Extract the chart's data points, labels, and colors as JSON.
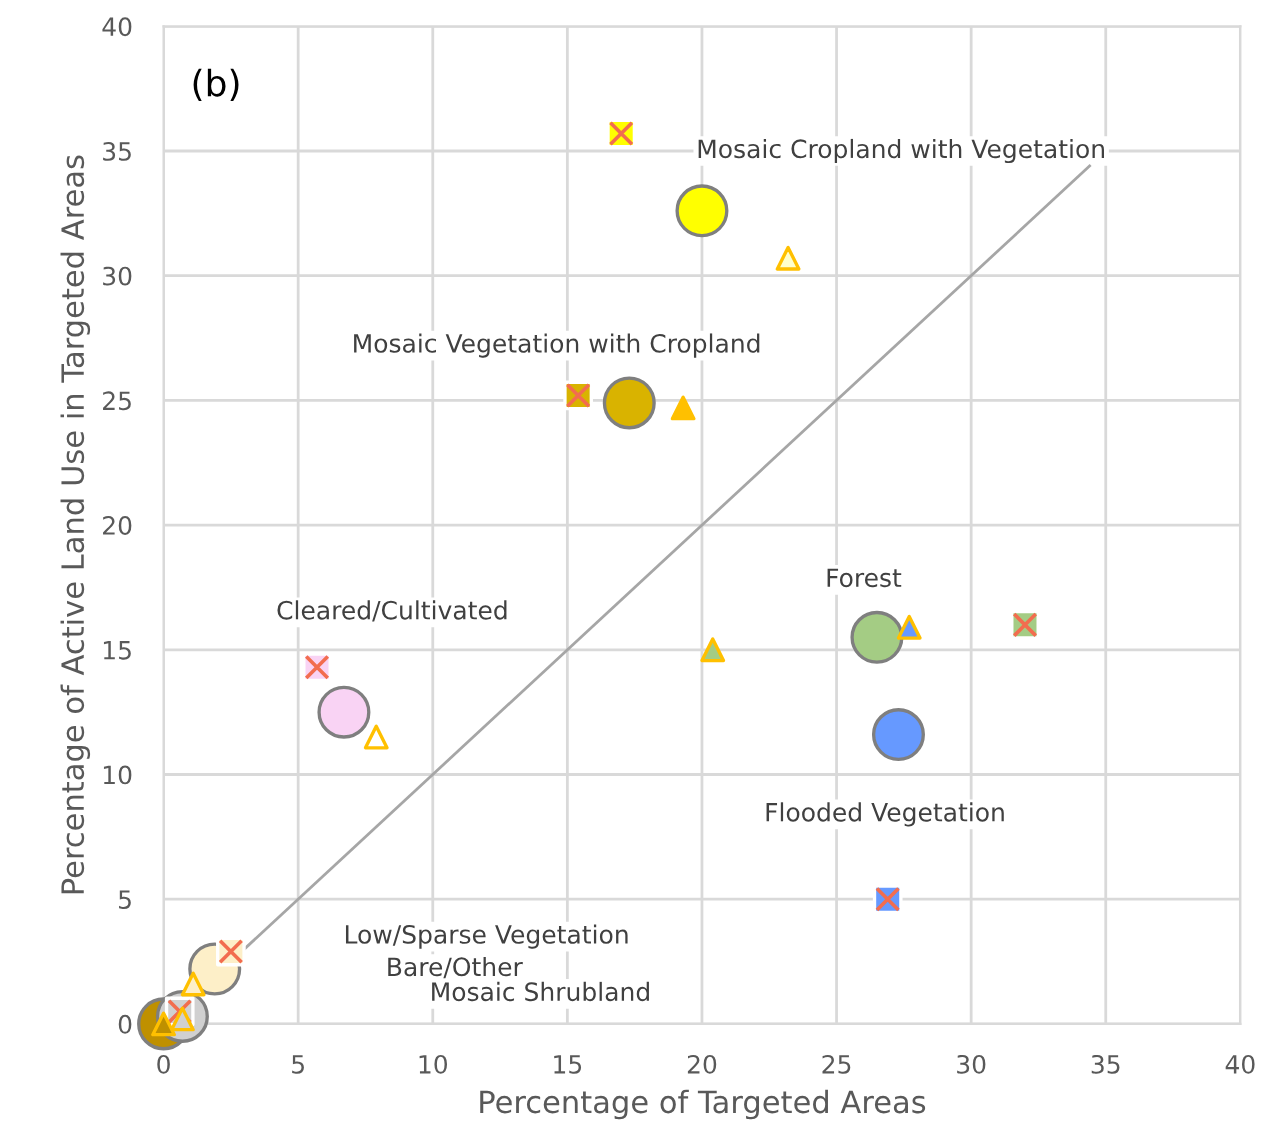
{
  "chart_data": {
    "type": "scatter",
    "xlabel": "Percentage of Targeted Areas",
    "ylabel": "Percentage of Active Land Use in Targeted Areas",
    "xlim": [
      0,
      40
    ],
    "ylim": [
      0,
      40
    ],
    "xticks": [
      0,
      5,
      10,
      15,
      20,
      25,
      30,
      35,
      40
    ],
    "yticks": [
      0,
      5,
      10,
      15,
      20,
      25,
      30,
      35,
      40
    ],
    "grid": true,
    "legend": false,
    "series": [
      {
        "type": "line",
        "color": "#a6a6a6",
        "marker": "none",
        "line_style": "solid",
        "x": [
          0,
          34.4
        ],
        "values": [
          0,
          34.4
        ]
      },
      {
        "marker": "circle",
        "color": "#7f7f7f",
        "x": [
          20.0,
          17.3,
          6.7,
          26.5,
          27.3,
          1.9,
          0.0,
          0.7
        ],
        "values": [
          32.6,
          24.9,
          12.5,
          15.5,
          11.6,
          2.2,
          0.0,
          0.3
        ],
        "colors": [
          "#ffff00",
          "#d9b300",
          "#f9d3f4",
          "#a4cc84",
          "#6699ff",
          "#fdefc8",
          "#bf9000",
          "#d0d0d0"
        ]
      },
      {
        "marker": "square",
        "color": "#ffffff",
        "x": [
          17.0,
          15.4,
          32.0,
          26.9,
          5.7,
          2.5,
          0.6
        ],
        "values": [
          35.7,
          25.2,
          16.0,
          5.0,
          14.3,
          2.9,
          0.5
        ],
        "colors": [
          "#ffff00",
          "#d9b300",
          "#a4cc84",
          "#6699ff",
          "#f9d3f4",
          "#fdefc8",
          "#d0d0d0"
        ]
      },
      {
        "marker": "cross",
        "color": "#f26d4f",
        "x": [
          17.0,
          15.4,
          32.0,
          26.9,
          5.7,
          2.5,
          0.6
        ],
        "values": [
          35.7,
          25.2,
          16.0,
          5.0,
          14.3,
          2.9,
          0.5
        ]
      },
      {
        "marker": "triangle",
        "color": "#ffc000",
        "x": [
          23.2,
          19.3,
          20.4,
          27.7,
          7.9,
          1.1,
          0.7,
          0.0
        ],
        "values": [
          30.7,
          24.7,
          15.0,
          15.9,
          11.5,
          1.6,
          0.2,
          0.0
        ],
        "colors": [
          "#ffffcc",
          "#ffc000",
          "#a4cc84",
          "#6699ff",
          "#ffffff",
          "#fdefc8",
          "#d0d0d0",
          "#bf9000"
        ]
      }
    ],
    "annotations": [
      "(b)",
      "Mosaic Cropland with Vegetation",
      "Mosaic Vegetation with Cropland",
      "Cleared/Cultivated",
      "Forest",
      "Flooded Vegetation",
      "Low/Sparse Vegetation",
      "Bare/Other",
      "Mosaic Shrubland"
    ]
  }
}
